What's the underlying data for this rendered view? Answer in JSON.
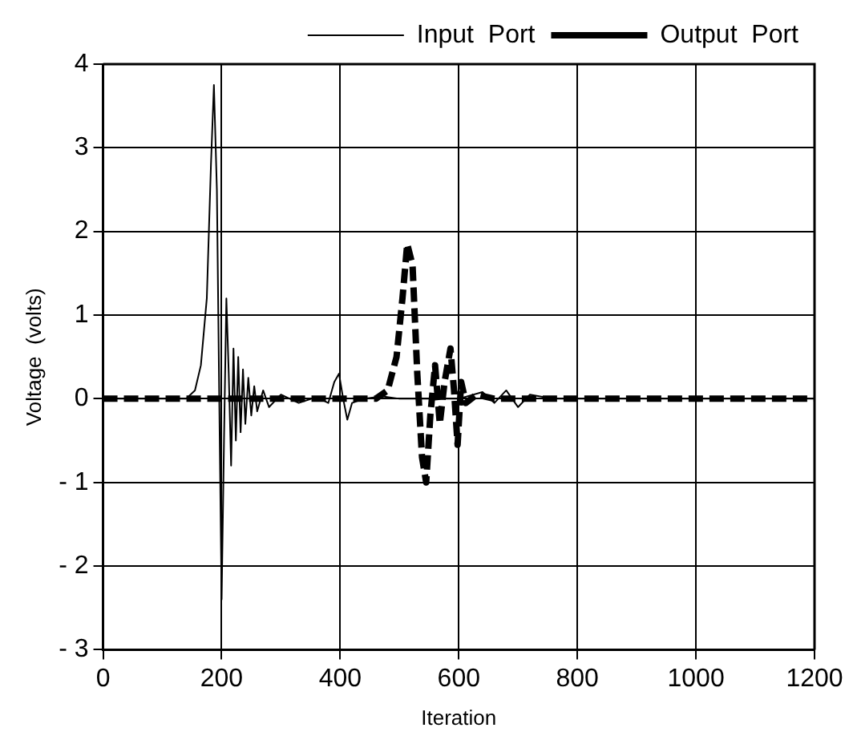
{
  "chart_data": {
    "type": "line",
    "xlabel": "Iteration",
    "ylabel": "Voltage  (volts)",
    "xlim": [
      0,
      1200
    ],
    "xticks": [
      0,
      200,
      400,
      600,
      800,
      1000,
      1200
    ],
    "ylim": [
      -3,
      4
    ],
    "yticks": [
      4,
      3,
      2,
      1,
      0,
      {
        "value": -1,
        "label": "- 1"
      },
      {
        "value": -2,
        "label": "- 2"
      },
      {
        "value": -3,
        "label": "- 3"
      }
    ],
    "grid": true,
    "legend": "top right",
    "marker": "none",
    "series": [
      {
        "name": "Input  Port",
        "color": "#000000",
        "line_style": "solid",
        "x": [
          0,
          140,
          155,
          165,
          175,
          182,
          187,
          192,
          196,
          200,
          204,
          208,
          212,
          216,
          220,
          224,
          228,
          232,
          236,
          240,
          245,
          250,
          255,
          260,
          270,
          280,
          300,
          330,
          360,
          380,
          390,
          398,
          405,
          412,
          420,
          440,
          470,
          500,
          600,
          640,
          660,
          680,
          700,
          720,
          760,
          800,
          1200
        ],
        "values": [
          0,
          0,
          0.1,
          0.4,
          1.2,
          2.8,
          3.75,
          2.5,
          0,
          -2.4,
          -0.5,
          1.2,
          0.3,
          -0.8,
          0.6,
          -0.5,
          0.5,
          -0.4,
          0.35,
          -0.3,
          0.25,
          -0.2,
          0.15,
          -0.15,
          0.1,
          -0.1,
          0.05,
          -0.05,
          0.02,
          -0.05,
          0.2,
          0.3,
          0,
          -0.25,
          -0.05,
          0,
          0.03,
          0,
          0,
          0.08,
          -0.05,
          0.1,
          -0.1,
          0.05,
          0,
          0,
          0
        ]
      },
      {
        "name": "Output  Port",
        "color": "#000000",
        "line_style": "dashed",
        "x": [
          0,
          460,
          480,
          495,
          505,
          513,
          522,
          530,
          538,
          545,
          552,
          560,
          568,
          576,
          586,
          592,
          598,
          604,
          612,
          630,
          660,
          700,
          800,
          1200
        ],
        "values": [
          0,
          0,
          0.1,
          0.5,
          1.2,
          1.85,
          1.6,
          0.3,
          -0.7,
          -1.0,
          -0.2,
          0.4,
          -0.3,
          0.2,
          0.6,
          0.1,
          -0.55,
          0.2,
          -0.05,
          0.05,
          0,
          0,
          0,
          0
        ]
      }
    ]
  }
}
